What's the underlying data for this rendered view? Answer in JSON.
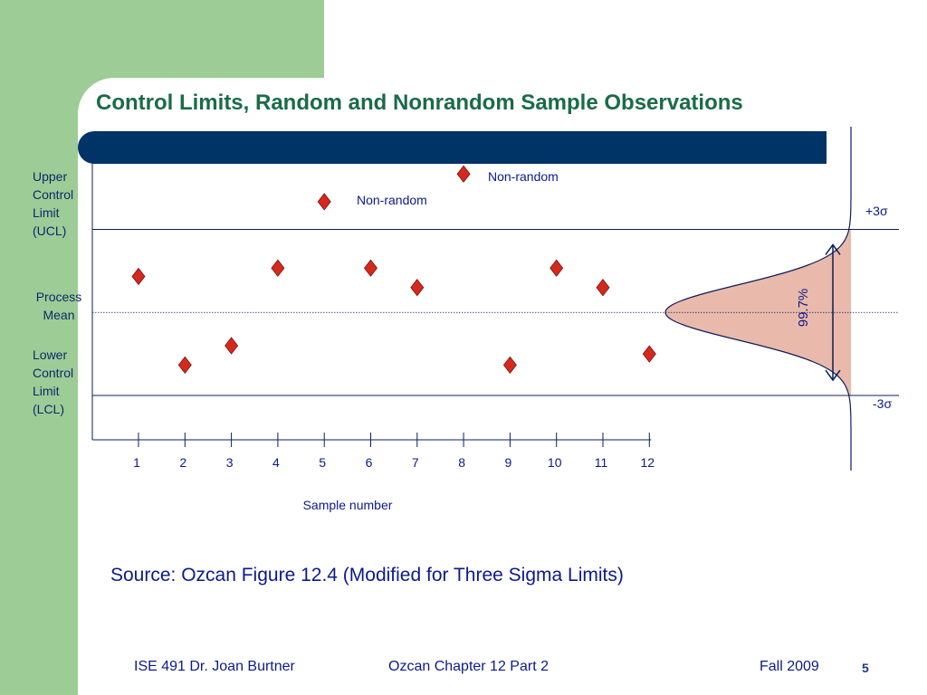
{
  "slide": {
    "title": "Control Limits, Random and Nonrandom Sample Observations",
    "source": "Source:  Ozcan  Figure 12.4  (Modified for Three Sigma Limits)",
    "footer_course": "ISE 491  Dr. Joan Burtner",
    "footer_chapter": "Ozcan Chapter 12  Part 2",
    "footer_term": "Fall 2009",
    "page_number": "5"
  },
  "labels": {
    "ucl": [
      "Upper",
      "Control",
      "Limit",
      "(UCL)"
    ],
    "mean": [
      "Process",
      "Mean"
    ],
    "lcl": [
      "Lower",
      "Control",
      "Limit",
      "(LCL)"
    ],
    "plus_sigma": "+3σ",
    "minus_sigma": "-3σ",
    "coverage": "99.7%",
    "nonrandom_1": "Non-random",
    "nonrandom_2": "Non-random"
  },
  "colors": {
    "marker": "#d42a1c",
    "curve_fill": "#e9b9ab",
    "title_bar": "#003366",
    "title_text": "#1a6b49",
    "green": "#9dcc96"
  },
  "chart_data": {
    "type": "scatter",
    "title": "",
    "xlabel": "Sample number",
    "ylabel": "",
    "categories": [
      "1",
      "2",
      "3",
      "4",
      "5",
      "6",
      "7",
      "8",
      "9",
      "10",
      "11",
      "12"
    ],
    "x": [
      1,
      2,
      3,
      4,
      5,
      6,
      7,
      8,
      9,
      10,
      11,
      12
    ],
    "y": [
      1.3,
      -1.9,
      -1.2,
      1.6,
      4.0,
      1.6,
      0.9,
      5.0,
      -1.9,
      1.6,
      0.9,
      -1.5
    ],
    "limits": {
      "ucl": 3,
      "center": 0,
      "lcl": -3
    },
    "ylim": [
      -4.6,
      5.4
    ],
    "grid": false,
    "legend": "none"
  }
}
